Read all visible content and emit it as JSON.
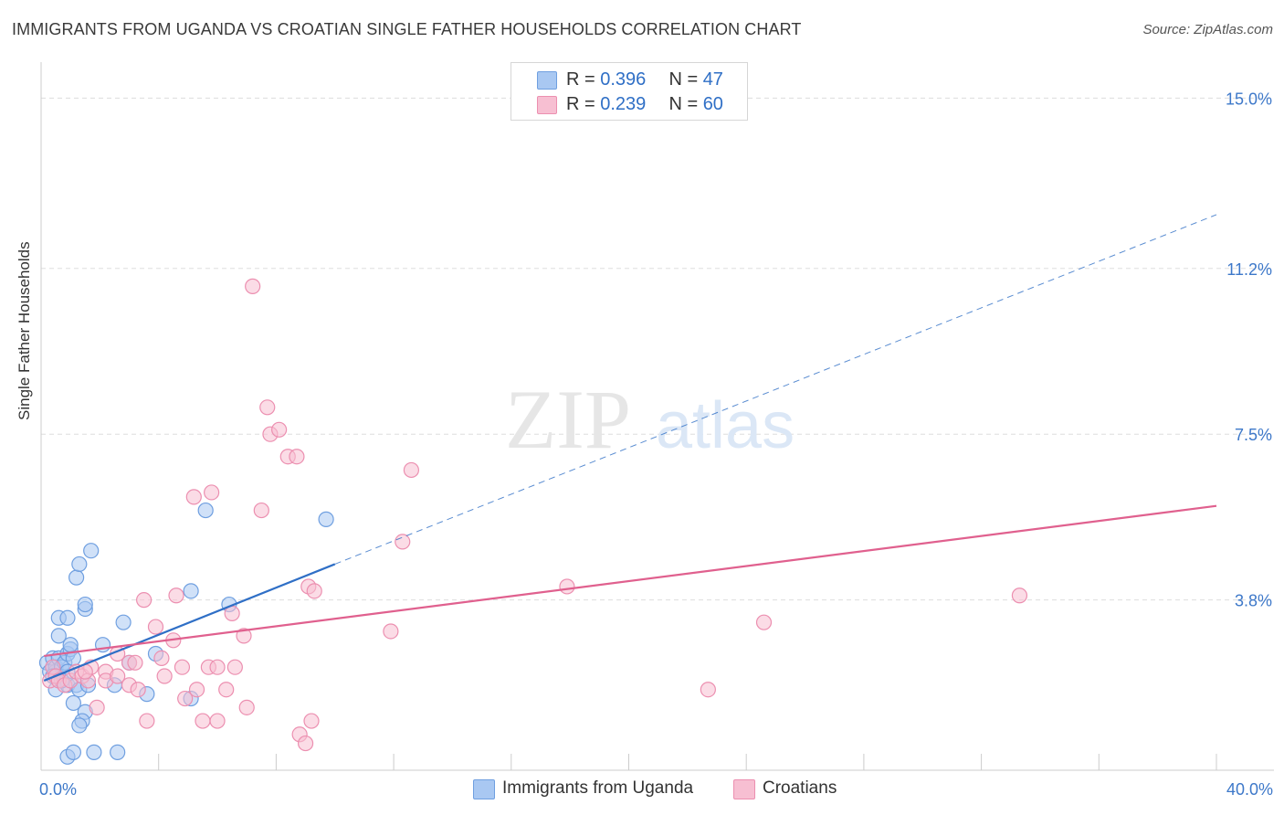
{
  "header": {
    "title": "IMMIGRANTS FROM UGANDA VS CROATIAN SINGLE FATHER HOUSEHOLDS CORRELATION CHART",
    "source": "Source: ZipAtlas.com"
  },
  "legend_top": {
    "rows": [
      {
        "r_label": "R = ",
        "r_value": "0.396",
        "n_label": "N = ",
        "n_value": "47"
      },
      {
        "r_label": "R = ",
        "r_value": "0.239",
        "n_label": "N = ",
        "n_value": "60"
      }
    ]
  },
  "legend_bottom": {
    "items": [
      {
        "label": "Immigrants from Uganda"
      },
      {
        "label": "Croatians"
      }
    ]
  },
  "watermark": {
    "zip": "ZIP",
    "atlas": "atlas"
  },
  "colors": {
    "uganda_fill": "#a9c8f2",
    "uganda_stroke": "#6f9fe0",
    "uganda_line": "#2f6fc6",
    "croatian_fill": "#f7bfd2",
    "croatian_stroke": "#ec8fb0",
    "croatian_line": "#e0608e",
    "tick_color": "#3d78c9",
    "grid": "#dddddd"
  },
  "chart_data": {
    "type": "scatter",
    "title": "IMMIGRANTS FROM UGANDA VS CROATIAN SINGLE FATHER HOUSEHOLDS CORRELATION CHART",
    "xlabel": "",
    "ylabel": "Single Father Households",
    "xlim": [
      0,
      40
    ],
    "ylim": [
      0,
      15.6
    ],
    "x_tick_labels": [
      {
        "value": 0,
        "label": "0.0%"
      },
      {
        "value": 40,
        "label": "40.0%"
      }
    ],
    "y_tick_labels": [
      {
        "value": 3.8,
        "label": "3.8%"
      },
      {
        "value": 7.5,
        "label": "7.5%"
      },
      {
        "value": 11.2,
        "label": "11.2%"
      },
      {
        "value": 15.0,
        "label": "15.0%"
      }
    ],
    "grid": true,
    "series": [
      {
        "name": "Immigrants from Uganda",
        "r": 0.396,
        "n": 47,
        "trend": {
          "x0": 0.1,
          "y0": 2.0,
          "x1": 10.0,
          "y1": 4.6,
          "dash_x1": 40.0,
          "dash_y1": 12.4
        },
        "points": [
          [
            0.2,
            2.4
          ],
          [
            0.3,
            2.2
          ],
          [
            0.4,
            2.5
          ],
          [
            0.5,
            2.2
          ],
          [
            0.5,
            2.3
          ],
          [
            0.6,
            2.5
          ],
          [
            0.7,
            2.3
          ],
          [
            0.8,
            2.4
          ],
          [
            0.9,
            2.6
          ],
          [
            1.0,
            2.7
          ],
          [
            0.9,
            2.2
          ],
          [
            1.1,
            2.5
          ],
          [
            0.6,
            3.0
          ],
          [
            0.6,
            3.4
          ],
          [
            0.9,
            3.4
          ],
          [
            1.0,
            2.8
          ],
          [
            0.5,
            1.8
          ],
          [
            0.9,
            1.9
          ],
          [
            1.2,
            1.9
          ],
          [
            1.3,
            1.8
          ],
          [
            1.6,
            1.9
          ],
          [
            1.1,
            1.5
          ],
          [
            1.5,
            1.3
          ],
          [
            1.4,
            1.1
          ],
          [
            1.3,
            1.0
          ],
          [
            0.9,
            0.3
          ],
          [
            1.1,
            0.4
          ],
          [
            1.8,
            0.4
          ],
          [
            2.6,
            0.4
          ],
          [
            1.2,
            4.3
          ],
          [
            1.3,
            4.6
          ],
          [
            1.7,
            4.9
          ],
          [
            1.5,
            3.6
          ],
          [
            1.5,
            3.7
          ],
          [
            2.1,
            2.8
          ],
          [
            2.5,
            1.9
          ],
          [
            2.8,
            3.3
          ],
          [
            3.0,
            2.4
          ],
          [
            3.6,
            1.7
          ],
          [
            3.9,
            2.6
          ],
          [
            5.1,
            1.6
          ],
          [
            5.1,
            4.0
          ],
          [
            5.6,
            5.8
          ],
          [
            6.4,
            3.7
          ],
          [
            9.7,
            5.6
          ],
          [
            0.4,
            2.1
          ],
          [
            0.7,
            2.0
          ]
        ]
      },
      {
        "name": "Croatians",
        "r": 0.239,
        "n": 60,
        "trend": {
          "x0": 0.1,
          "y0": 2.55,
          "x1": 40.0,
          "y1": 5.9
        },
        "points": [
          [
            0.3,
            2.0
          ],
          [
            0.4,
            2.3
          ],
          [
            0.5,
            2.1
          ],
          [
            0.6,
            2.0
          ],
          [
            0.8,
            1.9
          ],
          [
            1.0,
            2.0
          ],
          [
            1.2,
            2.2
          ],
          [
            1.4,
            2.1
          ],
          [
            1.6,
            2.0
          ],
          [
            1.7,
            2.3
          ],
          [
            1.9,
            1.4
          ],
          [
            2.2,
            2.2
          ],
          [
            2.2,
            2.0
          ],
          [
            2.6,
            2.6
          ],
          [
            3.0,
            2.4
          ],
          [
            3.0,
            1.9
          ],
          [
            3.2,
            2.4
          ],
          [
            3.3,
            1.8
          ],
          [
            3.5,
            3.8
          ],
          [
            3.6,
            1.1
          ],
          [
            3.9,
            3.2
          ],
          [
            4.1,
            2.5
          ],
          [
            4.2,
            2.1
          ],
          [
            4.5,
            2.9
          ],
          [
            4.6,
            3.9
          ],
          [
            4.8,
            2.3
          ],
          [
            4.9,
            1.6
          ],
          [
            5.2,
            6.1
          ],
          [
            5.3,
            1.8
          ],
          [
            5.5,
            1.1
          ],
          [
            5.7,
            2.3
          ],
          [
            5.8,
            6.2
          ],
          [
            6.0,
            2.3
          ],
          [
            6.0,
            1.1
          ],
          [
            6.3,
            1.8
          ],
          [
            6.5,
            3.5
          ],
          [
            6.6,
            2.3
          ],
          [
            6.9,
            3.0
          ],
          [
            7.0,
            1.4
          ],
          [
            7.2,
            10.8
          ],
          [
            7.5,
            5.8
          ],
          [
            7.7,
            8.1
          ],
          [
            7.8,
            7.5
          ],
          [
            8.1,
            7.6
          ],
          [
            8.4,
            7.0
          ],
          [
            8.8,
            0.8
          ],
          [
            9.0,
            0.6
          ],
          [
            9.1,
            4.1
          ],
          [
            9.2,
            1.1
          ],
          [
            9.3,
            4.0
          ],
          [
            11.9,
            3.1
          ],
          [
            12.3,
            5.1
          ],
          [
            12.6,
            6.7
          ],
          [
            17.9,
            4.1
          ],
          [
            22.7,
            1.8
          ],
          [
            24.6,
            3.3
          ],
          [
            33.3,
            3.9
          ],
          [
            8.7,
            7.0
          ],
          [
            2.6,
            2.1
          ],
          [
            1.5,
            2.2
          ]
        ]
      }
    ]
  }
}
